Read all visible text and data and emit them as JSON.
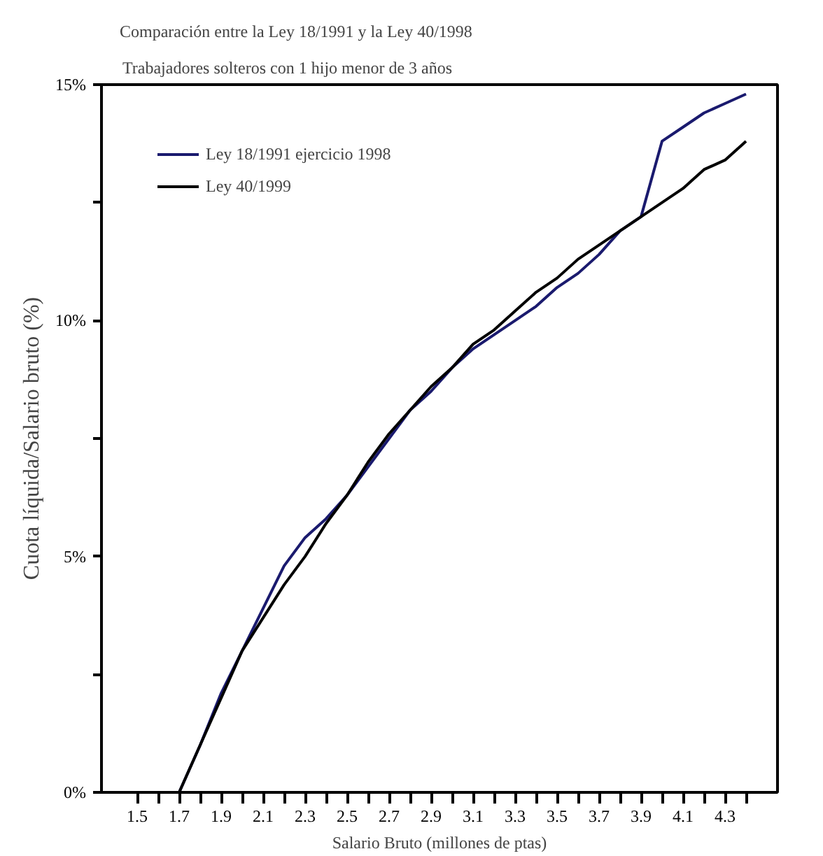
{
  "chart_data": {
    "type": "line",
    "title": "Comparación entre la Ley 18/1991 y la Ley 40/1998",
    "subtitle": "Trabajadores solteros con 1 hijo menor de 3 años",
    "xlabel": "Salario Bruto (millones de ptas)",
    "ylabel": "Cuota líquida/Salario bruto (%)",
    "x": [
      1.5,
      1.6,
      1.7,
      1.8,
      1.9,
      2.0,
      2.1,
      2.2,
      2.3,
      2.4,
      2.5,
      2.6,
      2.7,
      2.8,
      2.9,
      3.0,
      3.1,
      3.2,
      3.3,
      3.4,
      3.5,
      3.6,
      3.7,
      3.8,
      3.9,
      4.0,
      4.1,
      4.2,
      4.3,
      4.4
    ],
    "series": [
      {
        "name": "Ley 18/1991 ejercicio 1998",
        "color": "#1a1a6e",
        "values": [
          0,
          0,
          0,
          1.0,
          2.1,
          3.0,
          3.9,
          4.8,
          5.4,
          5.8,
          6.3,
          6.9,
          7.5,
          8.1,
          8.5,
          9.0,
          9.4,
          9.7,
          10.0,
          10.3,
          10.7,
          11.0,
          11.4,
          11.9,
          12.2,
          13.8,
          14.1,
          14.4,
          14.6,
          14.8
        ]
      },
      {
        "name": "Ley 40/1999",
        "color": "#000000",
        "values": [
          0,
          0,
          0,
          1.0,
          2.0,
          3.0,
          3.7,
          4.4,
          5.0,
          5.7,
          6.3,
          7.0,
          7.6,
          8.1,
          8.6,
          9.0,
          9.5,
          9.8,
          10.2,
          10.6,
          10.9,
          11.3,
          11.6,
          11.9,
          12.2,
          12.5,
          12.8,
          13.2,
          13.4,
          13.8
        ]
      }
    ],
    "xlim": [
      1.33,
      4.55
    ],
    "ylim": [
      0,
      15
    ],
    "xticks": [
      1.5,
      {
        "value": 1.6,
        "label": null
      },
      1.7,
      {
        "value": 1.8,
        "label": null
      },
      1.9,
      {
        "value": 2.0,
        "label": null
      },
      2.1,
      {
        "value": 2.2,
        "label": null
      },
      2.3,
      {
        "value": 2.4,
        "label": null
      },
      2.5,
      {
        "value": 2.6,
        "label": null
      },
      2.7,
      {
        "value": 2.8,
        "label": null
      },
      2.9,
      {
        "value": 3.0,
        "label": null
      },
      3.1,
      {
        "value": 3.2,
        "label": null
      },
      3.3,
      {
        "value": 3.4,
        "label": null
      },
      3.5,
      {
        "value": 3.6,
        "label": null
      },
      3.7,
      {
        "value": 3.8,
        "label": null
      },
      3.9,
      {
        "value": 4.0,
        "label": null
      },
      4.1,
      {
        "value": 4.2,
        "label": null
      },
      4.3,
      {
        "value": 4.4,
        "label": null
      }
    ],
    "yticks": [
      {
        "value": 0,
        "label": "0%"
      },
      {
        "value": 2.5,
        "label": null
      },
      {
        "value": 5,
        "label": "5%"
      },
      {
        "value": 7.5,
        "label": null
      },
      {
        "value": 10,
        "label": "10%"
      },
      {
        "value": 12.5,
        "label": null
      },
      {
        "value": 15,
        "label": "15%"
      }
    ],
    "grid": false,
    "legend": "top left",
    "marker": "none",
    "line_style": "solid"
  }
}
